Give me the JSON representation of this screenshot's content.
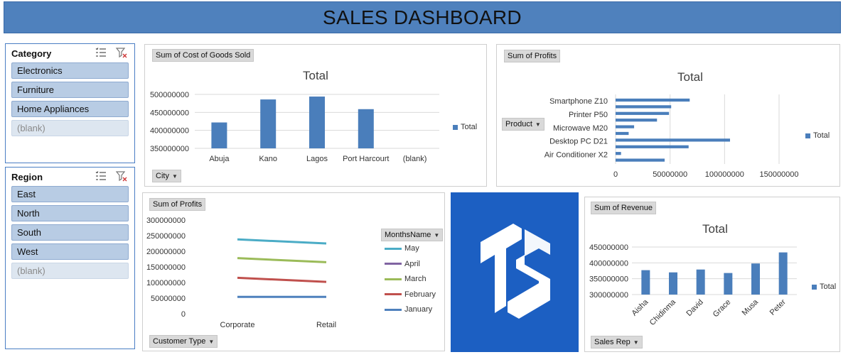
{
  "header": {
    "title": "SALES DASHBOARD"
  },
  "category_slicer": {
    "title": "Category",
    "items": [
      {
        "label": "Electronics",
        "selected": true
      },
      {
        "label": "Furniture",
        "selected": true
      },
      {
        "label": "Home Appliances",
        "selected": true
      },
      {
        "label": "(blank)",
        "selected": false
      }
    ]
  },
  "region_slicer": {
    "title": "Region",
    "items": [
      {
        "label": "East",
        "selected": true
      },
      {
        "label": "North",
        "selected": true
      },
      {
        "label": "South",
        "selected": true
      },
      {
        "label": "West",
        "selected": true
      },
      {
        "label": "(blank)",
        "selected": false
      }
    ]
  },
  "cogs_chart": {
    "value_field": "Sum of Cost of Goods Sold",
    "axis_field": "City",
    "title": "Total",
    "legend": "Total",
    "categories": [
      "Abuja",
      "Kano",
      "Lagos",
      "Port Harcourt",
      "(blank)"
    ],
    "values": [
      422000000,
      486000000,
      494000000,
      459000000,
      null
    ],
    "ylim": [
      350000000,
      500000000
    ],
    "yticks": [
      "500000000",
      "450000000",
      "400000000",
      "350000000"
    ],
    "color": "#4a7ebb"
  },
  "profit_product_chart": {
    "value_field": "Sum of Profits",
    "axis_field": "Product",
    "title": "Total",
    "legend": "Total",
    "labeled_categories": [
      "Smartphone Z10",
      "Printer P50",
      "Microwave M20",
      "Desktop PC D21",
      "Air Conditioner X2"
    ],
    "bar_values": [
      68000000,
      51000000,
      49000000,
      38000000,
      17000000,
      12000000,
      105000000,
      67000000,
      5000000,
      45000000
    ],
    "xlim": [
      0,
      165000000
    ],
    "xticks": [
      "0",
      "50000000",
      "100000000",
      "150000000"
    ],
    "color": "#4a7ebb"
  },
  "profit_customer_chart": {
    "value_field": "Sum of Profits",
    "axis_field": "Customer Type",
    "legend_field": "MonthsName",
    "categories": [
      "Corporate",
      "Retail"
    ],
    "yticks": [
      "300000000",
      "250000000",
      "200000000",
      "150000000",
      "100000000",
      "50000000",
      "0"
    ],
    "ylim": [
      0,
      300000000
    ],
    "series": [
      {
        "name": "May",
        "color": "#4bacc6",
        "values": [
          238000000,
          225000000
        ]
      },
      {
        "name": "April",
        "color": "#8064a2",
        "values": [
          null,
          null
        ]
      },
      {
        "name": "March",
        "color": "#9bbb59",
        "values": [
          178000000,
          165000000
        ]
      },
      {
        "name": "February",
        "color": "#c0504d",
        "values": [
          115000000,
          102000000
        ]
      },
      {
        "name": "January",
        "color": "#4f81bd",
        "values": [
          54000000,
          54000000
        ]
      }
    ]
  },
  "logo": {
    "text": "TS",
    "background": "#1c5fc2"
  },
  "revenue_chart": {
    "value_field": "Sum of Revenue",
    "axis_field": "Sales Rep",
    "title": "Total",
    "legend": "Total",
    "categories": [
      "Aisha",
      "Chidinma",
      "David",
      "Grace",
      "Musa",
      "Peter"
    ],
    "values": [
      377000000,
      370000000,
      379000000,
      368000000,
      398000000,
      433000000
    ],
    "ylim": [
      300000000,
      450000000
    ],
    "yticks": [
      "450000000",
      "400000000",
      "350000000",
      "300000000"
    ],
    "color": "#4a7ebb"
  }
}
